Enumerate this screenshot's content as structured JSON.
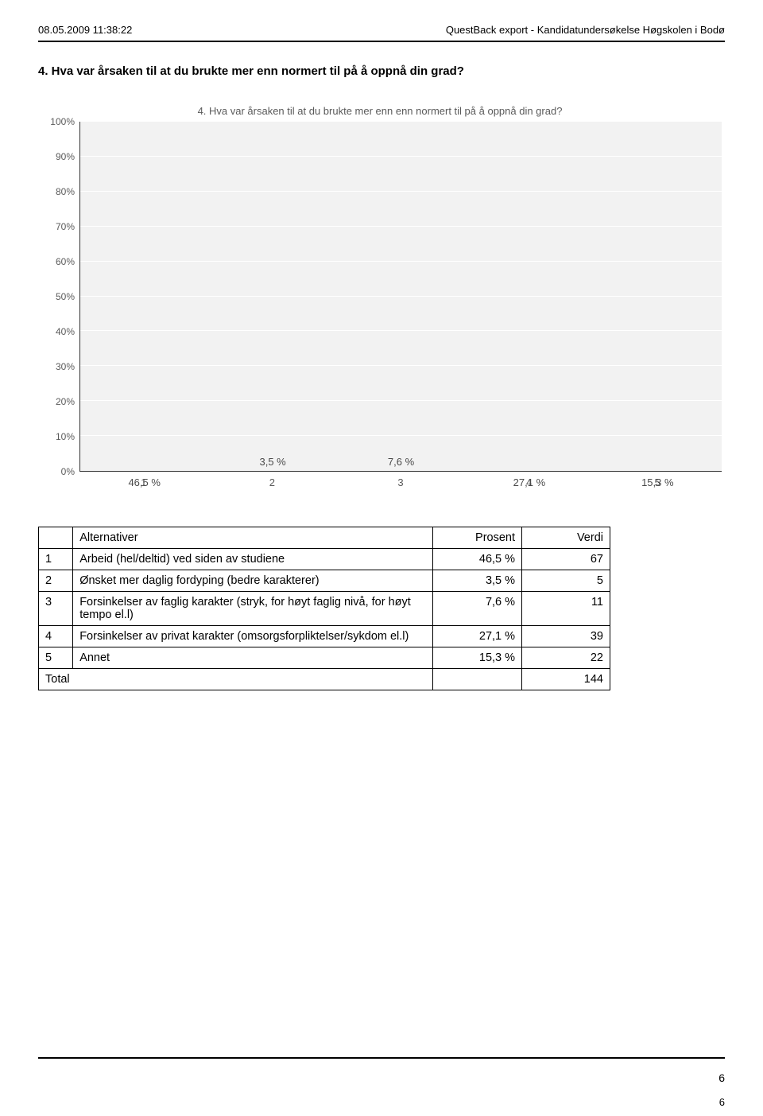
{
  "header": {
    "timestamp": "08.05.2009 11:38:22",
    "export_title": "QuestBack export - Kandidatundersøkelse Høgskolen i Bodø"
  },
  "question": "4. Hva var årsaken til at du brukte mer enn normert til på å oppnå din grad?",
  "chart": {
    "type": "bar",
    "title": "4. Hva var årsaken til at du brukte mer enn enn normert til på å oppnå din grad?",
    "title_fontsize": 13,
    "title_color": "#5a5a5a",
    "background_color": "#f2f2f2",
    "grid_color": "#ffffff",
    "axis_color": "#333333",
    "label_fontsize": 12,
    "y": {
      "min": 0,
      "max": 100,
      "step": 10,
      "suffix": "%",
      "ticks": [
        "0%",
        "10%",
        "20%",
        "30%",
        "40%",
        "50%",
        "60%",
        "70%",
        "80%",
        "90%",
        "100%"
      ]
    },
    "x_labels": [
      "1",
      "2",
      "3",
      "4",
      "5"
    ],
    "bars": [
      {
        "value": 46.5,
        "label": "46,5 %",
        "label_pos": "inside"
      },
      {
        "value": 3.5,
        "label": "3,5 %",
        "label_pos": "above"
      },
      {
        "value": 7.6,
        "label": "7,6 %",
        "label_pos": "above"
      },
      {
        "value": 27.1,
        "label": "27,1 %",
        "label_pos": "inside"
      },
      {
        "value": 15.3,
        "label": "15,3 %",
        "label_pos": "inside"
      }
    ],
    "bar_gradient": [
      "#56636f",
      "#7e8b95",
      "#b0bac2",
      "#7e8b95",
      "#56636f"
    ],
    "bar_width": 0.66,
    "bar_border_radius": 6
  },
  "table": {
    "columns": [
      "Alternativer",
      "Prosent",
      "Verdi"
    ],
    "rows": [
      {
        "idx": "1",
        "label": "Arbeid (hel/deltid) ved siden av studiene",
        "pct": "46,5 %",
        "val": "67"
      },
      {
        "idx": "2",
        "label": "Ønsket mer daglig fordyping (bedre karakterer)",
        "pct": "3,5 %",
        "val": "5"
      },
      {
        "idx": "3",
        "label": "Forsinkelser av faglig karakter (stryk, for høyt faglig nivå, for høyt tempo el.l)",
        "pct": "7,6 %",
        "val": "11"
      },
      {
        "idx": "4",
        "label": "Forsinkelser av privat karakter (omsorgsforpliktelser/sykdom el.l)",
        "pct": "27,1 %",
        "val": "39"
      },
      {
        "idx": "5",
        "label": "Annet",
        "pct": "15,3 %",
        "val": "22"
      }
    ],
    "total": {
      "label": "Total",
      "val": "144"
    }
  },
  "footer": {
    "page_inner": "6",
    "page_outer": "6"
  }
}
